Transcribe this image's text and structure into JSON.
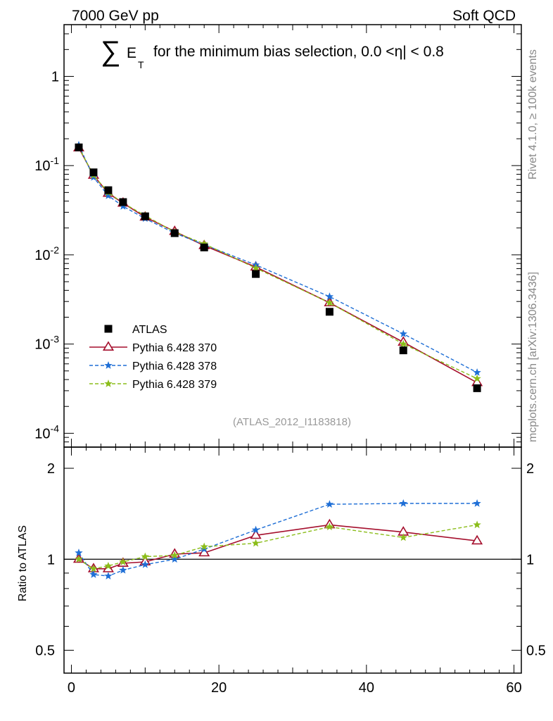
{
  "header": {
    "left": "7000 GeV pp",
    "right": "Soft QCD"
  },
  "side_text": {
    "rivet": "Rivet 4.1.0, ≥ 100k events",
    "mcplots": "mcplots.cern.ch [arXiv:1306.3436]"
  },
  "title": {
    "symbol": "∑",
    "e": "E",
    "t": "T",
    "rest": "for the minimum bias selection, 0.0 <η| < 0.8"
  },
  "analysis_id": "(ATLAS_2012_I1183818)",
  "chart_data": [
    {
      "type": "scatter",
      "panel": "main",
      "yscale": "log",
      "xlim": [
        -1,
        61
      ],
      "ylim": [
        7e-05,
        3.8
      ],
      "y_ticks": [
        {
          "value": 0.0001,
          "base": "10",
          "exp": "-4"
        },
        {
          "value": 0.001,
          "base": "10",
          "exp": "-3"
        },
        {
          "value": 0.01,
          "base": "10",
          "exp": "-2"
        },
        {
          "value": 0.1,
          "base": "10",
          "exp": "-1"
        },
        {
          "value": 1,
          "base": "1",
          "exp": ""
        }
      ],
      "x": [
        1,
        3,
        5,
        7,
        10,
        14,
        18,
        25,
        35,
        45,
        55
      ],
      "series": [
        {
          "name": "ATLAS",
          "key": "atlas",
          "color": "#000000",
          "marker": "square",
          "line": "none",
          "values": [
            0.16,
            0.084,
            0.053,
            0.039,
            0.027,
            0.0175,
            0.0121,
            0.0061,
            0.0023,
            0.00085,
            0.00032
          ]
        },
        {
          "name": "Pythia 6.428 370",
          "key": "p370",
          "color": "#a50f2d",
          "marker": "triangle-open",
          "line": "solid",
          "values": [
            0.158,
            0.078,
            0.049,
            0.038,
            0.0265,
            0.0183,
            0.0127,
            0.0073,
            0.0029,
            0.00105,
            0.00037
          ]
        },
        {
          "name": "Pythia 6.428 378",
          "key": "p378",
          "color": "#1f6fd6",
          "marker": "star",
          "line": "dashed",
          "values": [
            0.17,
            0.074,
            0.046,
            0.035,
            0.0255,
            0.0175,
            0.013,
            0.0077,
            0.0034,
            0.0013,
            0.00048
          ]
        },
        {
          "name": "Pythia 6.428 379",
          "key": "p379",
          "color": "#8bbd1a",
          "marker": "star",
          "line": "dashed",
          "values": [
            0.16,
            0.078,
            0.05,
            0.038,
            0.0275,
            0.018,
            0.0133,
            0.0071,
            0.0029,
            0.001,
            0.00041
          ]
        }
      ]
    },
    {
      "type": "scatter",
      "panel": "ratio",
      "yscale": "log",
      "ylabel": "Ratio to ATLAS",
      "xlim": [
        -1,
        61
      ],
      "ylim": [
        0.42,
        2.35
      ],
      "x_ticks": [
        0,
        20,
        40,
        60
      ],
      "y_ticks": [
        0.5,
        1,
        2
      ],
      "x": [
        1,
        3,
        5,
        7,
        10,
        14,
        18,
        25,
        35,
        45,
        55
      ],
      "reference": 1,
      "series": [
        {
          "name": "Pythia 6.428 370",
          "key": "p370",
          "color": "#a50f2d",
          "marker": "triangle-open",
          "line": "solid",
          "values": [
            1.0,
            0.93,
            0.93,
            0.97,
            0.98,
            1.04,
            1.05,
            1.2,
            1.3,
            1.23,
            1.15
          ]
        },
        {
          "name": "Pythia 6.428 378",
          "key": "p378",
          "color": "#1f6fd6",
          "marker": "star",
          "line": "dashed",
          "values": [
            1.05,
            0.89,
            0.88,
            0.92,
            0.96,
            1.0,
            1.08,
            1.25,
            1.52,
            1.53,
            1.53
          ]
        },
        {
          "name": "Pythia 6.428 379",
          "key": "p379",
          "color": "#8bbd1a",
          "marker": "star",
          "line": "dashed",
          "values": [
            1.0,
            0.93,
            0.95,
            0.98,
            1.02,
            1.03,
            1.1,
            1.13,
            1.28,
            1.18,
            1.3
          ]
        }
      ]
    }
  ]
}
